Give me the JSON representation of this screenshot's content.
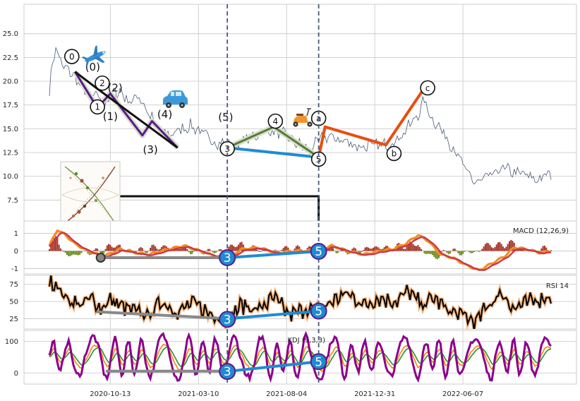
{
  "chart_data": [
    {
      "panel": "price",
      "type": "line",
      "y_ticks": [
        "7.5",
        "10.0",
        "12.5",
        "15.0",
        "17.5",
        "20.0",
        "22.5",
        "25.0"
      ],
      "ylim": [
        5.3,
        28.1
      ],
      "grid": true,
      "price_anchors": [
        [
          0,
          19.0
        ],
        [
          2,
          22.0
        ],
        [
          4,
          23.5
        ],
        [
          8,
          21.6
        ],
        [
          13,
          21.0
        ],
        [
          20,
          19.5
        ],
        [
          26,
          18.3
        ],
        [
          30,
          18.6
        ],
        [
          34,
          17.3
        ],
        [
          38,
          18.6
        ],
        [
          44,
          19.0
        ],
        [
          50,
          17.8
        ],
        [
          56,
          18.5
        ],
        [
          62,
          16.5
        ],
        [
          68,
          15.2
        ],
        [
          74,
          14.3
        ],
        [
          80,
          14.8
        ],
        [
          88,
          15.3
        ],
        [
          94,
          14.8
        ],
        [
          100,
          13.8
        ],
        [
          108,
          13.5
        ],
        [
          114,
          13.1
        ],
        [
          118,
          13.4
        ],
        [
          124,
          14.0
        ],
        [
          134,
          14.7
        ],
        [
          140,
          14.8
        ],
        [
          146,
          14.4
        ],
        [
          150,
          13.9
        ],
        [
          156,
          13.3
        ],
        [
          162,
          12.8
        ],
        [
          166,
          13.4
        ],
        [
          172,
          14.2
        ],
        [
          178,
          14.0
        ],
        [
          186,
          13.6
        ],
        [
          194,
          13.1
        ],
        [
          202,
          13.2
        ],
        [
          210,
          13.3
        ],
        [
          218,
          14.0
        ],
        [
          224,
          15.2
        ],
        [
          230,
          16.5
        ],
        [
          234,
          18.0
        ],
        [
          238,
          16.2
        ],
        [
          242,
          15.5
        ],
        [
          248,
          14.0
        ],
        [
          254,
          12.5
        ],
        [
          260,
          10.5
        ],
        [
          266,
          9.3
        ],
        [
          272,
          9.8
        ],
        [
          278,
          10.2
        ],
        [
          282,
          10.9
        ],
        [
          288,
          10.5
        ],
        [
          296,
          10.2
        ],
        [
          304,
          9.6
        ],
        [
          310,
          10.1
        ],
        [
          313,
          10.3
        ]
      ],
      "elliott_lines": [
        {
          "color": "#5b1a8c",
          "points": [
            [
              16,
              21.0
            ],
            [
              30,
              17.2
            ],
            [
              38,
              18.7
            ],
            [
              58,
              14.3
            ],
            [
              64,
              15.8
            ],
            [
              80,
              13.0
            ]
          ]
        },
        {
          "color": "#111111",
          "points": [
            [
              16,
              21.0
            ],
            [
              30,
              19.2
            ],
            [
              80,
              13.0
            ]
          ]
        },
        {
          "color": "#1f8bd2",
          "points": [
            [
              111,
              13.0
            ],
            [
              168,
              12.0
            ]
          ]
        },
        {
          "color": "#5a7a3a",
          "points": [
            [
              111,
              13.0
            ],
            [
              140,
              15.2
            ],
            [
              168,
              12.0
            ]
          ]
        },
        {
          "color": "#e84e0f",
          "points": [
            [
              168,
              12.0
            ],
            [
              172,
              15.2
            ],
            [
              210,
              13.3
            ],
            [
              234,
              19.3
            ]
          ]
        },
        {
          "color": "#111111",
          "points": [
            [
              35,
              7.9
            ],
            [
              168,
              7.9
            ],
            [
              168,
              1.1
            ]
          ]
        }
      ],
      "circle_labels": [
        {
          "text": "0",
          "at": [
            14,
            22.6
          ]
        },
        {
          "text": "1",
          "at": [
            30,
            17.3
          ]
        },
        {
          "text": "2",
          "at": [
            33,
            19.8
          ]
        },
        {
          "text": "3",
          "at": [
            111,
            12.9
          ]
        },
        {
          "text": "4",
          "at": [
            141,
            15.8
          ]
        },
        {
          "text": "5",
          "at": [
            168,
            11.8
          ]
        },
        {
          "text": "a",
          "at": [
            168,
            16.1
          ]
        },
        {
          "text": "b",
          "at": [
            215,
            12.4
          ]
        },
        {
          "text": "c",
          "at": [
            236,
            19.3
          ]
        }
      ],
      "wave_labels": [
        {
          "text": "(0)",
          "at": [
            27,
            21.5
          ]
        },
        {
          "text": "(1)",
          "at": [
            38,
            16.3
          ]
        },
        {
          "text": "(2)",
          "at": [
            41,
            19.3
          ]
        },
        {
          "text": "(3)",
          "at": [
            63,
            12.8
          ]
        },
        {
          "text": "(4)",
          "at": [
            72,
            16.5
          ]
        },
        {
          "text": "(5)",
          "at": [
            110,
            16.2
          ]
        }
      ],
      "vlines_x_index": [
        111,
        168
      ]
    },
    {
      "panel": "macd",
      "type": "line",
      "label": "MACD (12,26,9)",
      "y_ticks": [
        "1",
        "0",
        "-1"
      ],
      "ylim": [
        -1.3,
        1.7
      ],
      "grid": true,
      "macd_anchors": [
        [
          0,
          0.3
        ],
        [
          5,
          1.2
        ],
        [
          10,
          0.9
        ],
        [
          16,
          0.4
        ],
        [
          24,
          0.0
        ],
        [
          34,
          -0.3
        ],
        [
          44,
          0.1
        ],
        [
          54,
          -0.1
        ],
        [
          62,
          -0.2
        ],
        [
          74,
          0.1
        ],
        [
          84,
          0.3
        ],
        [
          94,
          0.0
        ],
        [
          104,
          -0.3
        ],
        [
          111,
          -0.4
        ],
        [
          120,
          0.1
        ],
        [
          130,
          0.2
        ],
        [
          142,
          -0.1
        ],
        [
          154,
          0.0
        ],
        [
          168,
          0.05
        ],
        [
          176,
          0.3
        ],
        [
          186,
          0.0
        ],
        [
          196,
          -0.2
        ],
        [
          206,
          0.0
        ],
        [
          214,
          0.1
        ],
        [
          222,
          0.4
        ],
        [
          230,
          0.9
        ],
        [
          236,
          0.6
        ],
        [
          244,
          -0.2
        ],
        [
          252,
          -0.4
        ],
        [
          260,
          -0.8
        ],
        [
          268,
          -1.1
        ],
        [
          276,
          -0.7
        ],
        [
          284,
          -0.3
        ],
        [
          290,
          0.2
        ],
        [
          298,
          0.1
        ],
        [
          306,
          -0.1
        ],
        [
          313,
          0.0
        ]
      ],
      "signal_offset": -0.05,
      "divergence_lines": [
        {
          "color": "#888888",
          "points": [
            [
              32,
              -0.38
            ],
            [
              111,
              -0.38
            ]
          ]
        },
        {
          "color": "#1f8bd2",
          "points": [
            [
              111,
              -0.38
            ],
            [
              168,
              -0.02
            ]
          ]
        }
      ],
      "markers": [
        {
          "text": "3",
          "at": [
            111,
            -0.38
          ]
        },
        {
          "text": "5",
          "at": [
            168,
            -0.02
          ]
        }
      ]
    },
    {
      "panel": "rsi",
      "type": "line",
      "label": "RSI 14",
      "y_ticks": [
        "75",
        "50",
        "25"
      ],
      "ylim": [
        10,
        88
      ],
      "grid": true,
      "rsi_anchors": [
        [
          0,
          75
        ],
        [
          4,
          78
        ],
        [
          8,
          60
        ],
        [
          14,
          50
        ],
        [
          20,
          45
        ],
        [
          26,
          55
        ],
        [
          32,
          40
        ],
        [
          38,
          52
        ],
        [
          46,
          42
        ],
        [
          54,
          35
        ],
        [
          62,
          30
        ],
        [
          70,
          50
        ],
        [
          80,
          35
        ],
        [
          90,
          48
        ],
        [
          100,
          32
        ],
        [
          111,
          25
        ],
        [
          120,
          45
        ],
        [
          130,
          38
        ],
        [
          140,
          55
        ],
        [
          150,
          30
        ],
        [
          160,
          40
        ],
        [
          168,
          35
        ],
        [
          176,
          50
        ],
        [
          186,
          62
        ],
        [
          196,
          45
        ],
        [
          206,
          55
        ],
        [
          216,
          50
        ],
        [
          224,
          65
        ],
        [
          232,
          45
        ],
        [
          240,
          55
        ],
        [
          250,
          35
        ],
        [
          258,
          30
        ],
        [
          266,
          20
        ],
        [
          274,
          45
        ],
        [
          282,
          62
        ],
        [
          290,
          40
        ],
        [
          300,
          50
        ],
        [
          313,
          58
        ]
      ],
      "divergence_lines": [
        {
          "color": "#888888",
          "points": [
            [
              30,
              35
            ],
            [
              111,
              25
            ]
          ]
        },
        {
          "color": "#1f8bd2",
          "points": [
            [
              111,
              25
            ],
            [
              158,
              34
            ],
            [
              168,
              36
            ]
          ]
        }
      ],
      "markers": [
        {
          "text": "3",
          "at": [
            111,
            24
          ]
        },
        {
          "text": "5",
          "at": [
            168,
            36
          ]
        }
      ]
    },
    {
      "panel": "kdj",
      "type": "line",
      "label": "KDJ (9,3,3)",
      "y_ticks": [
        "100",
        "0"
      ],
      "ylim": [
        -35,
        135
      ],
      "grid": true,
      "divergence_lines": [
        {
          "color": "#888888",
          "points": [
            [
              36,
              6
            ],
            [
              111,
              6
            ]
          ]
        },
        {
          "color": "#1f8bd2",
          "points": [
            [
              111,
              5
            ],
            [
              168,
              36
            ]
          ]
        }
      ],
      "markers": [
        {
          "text": "3",
          "at": [
            111,
            5
          ]
        },
        {
          "text": "5",
          "at": [
            168,
            36
          ]
        }
      ]
    }
  ],
  "x_axis": {
    "n": 314,
    "tick_labels": [
      {
        "index": 38,
        "text": "2020-10-13"
      },
      {
        "index": 93,
        "text": "2021-03-10"
      },
      {
        "index": 148,
        "text": "2021-08-04"
      },
      {
        "index": 203,
        "text": "2021-12-31"
      },
      {
        "index": 258,
        "text": "2022-06-07"
      }
    ]
  },
  "colors": {
    "grid": "#cccccc",
    "axis_bg": "#ffffff",
    "price": "#4a5a78",
    "macd_line": "#f58a1f",
    "signal_line": "#c8374a",
    "hist_pos": "#a33327",
    "hist_neg": "#6a8a1a",
    "rsi_line": "#000000",
    "rsi_glow": "#f2b27a",
    "kdj_k": "#ff7f0e",
    "kdj_d": "#2d8e2d",
    "kdj_j": "#8b008b",
    "vline": "#4a5a78",
    "marker_fill": "#1f8bd2",
    "marker_edge": "#5b1a8c"
  },
  "icons": [
    "airplane-icon",
    "car-icon",
    "scooter-icon",
    "thumbnail-image"
  ]
}
